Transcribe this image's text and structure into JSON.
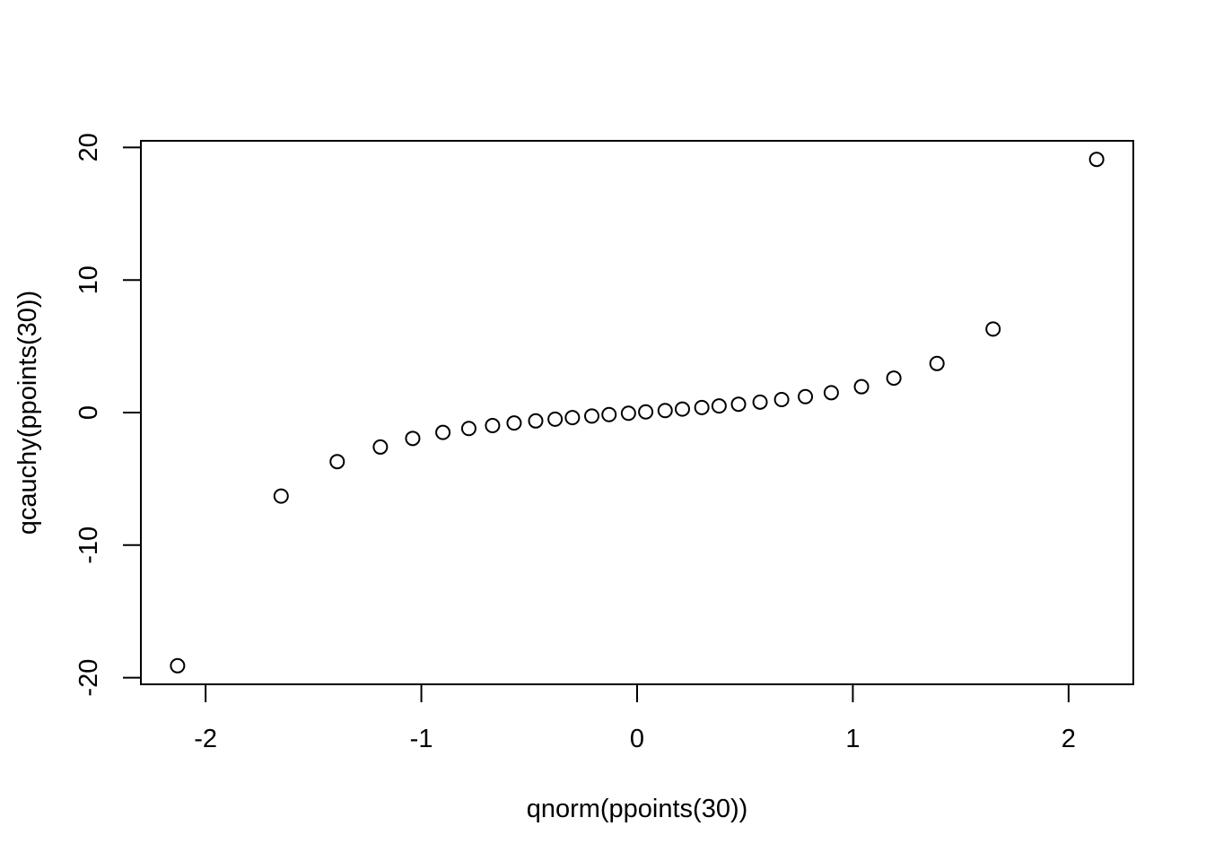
{
  "chart_data": {
    "type": "scatter",
    "title": "",
    "xlabel": "qnorm(ppoints(30))",
    "ylabel": "qcauchy(ppoints(30))",
    "xlim": [
      -2.3,
      2.3
    ],
    "ylim": [
      -20.5,
      20.5
    ],
    "grid": false,
    "legend": "none",
    "x_ticks": [
      -2,
      -1,
      0,
      1,
      2
    ],
    "y_ticks": [
      -20,
      -10,
      0,
      10,
      20
    ],
    "x_tick_labels": [
      "-2",
      "-1",
      "0",
      "1",
      "2"
    ],
    "y_tick_labels": [
      "-20",
      "-10",
      "0",
      "10",
      "20"
    ],
    "series": [
      {
        "x": [
          -2.13,
          -1.65,
          -1.39,
          -1.19,
          -1.04,
          -0.9,
          -0.78,
          -0.67,
          -0.57,
          -0.47,
          -0.38,
          -0.3,
          -0.21,
          -0.13,
          -0.04,
          0.04,
          0.13,
          0.21,
          0.3,
          0.38,
          0.47,
          0.57,
          0.67,
          0.78,
          0.9,
          1.04,
          1.19,
          1.39,
          1.65,
          2.13
        ],
        "y": [
          -19.1,
          -6.3,
          -3.7,
          -2.6,
          -1.95,
          -1.5,
          -1.2,
          -0.98,
          -0.79,
          -0.63,
          -0.5,
          -0.38,
          -0.26,
          -0.15,
          -0.05,
          0.05,
          0.15,
          0.26,
          0.38,
          0.5,
          0.63,
          0.79,
          0.98,
          1.2,
          1.5,
          1.95,
          2.6,
          3.7,
          6.3,
          19.1
        ]
      }
    ]
  }
}
